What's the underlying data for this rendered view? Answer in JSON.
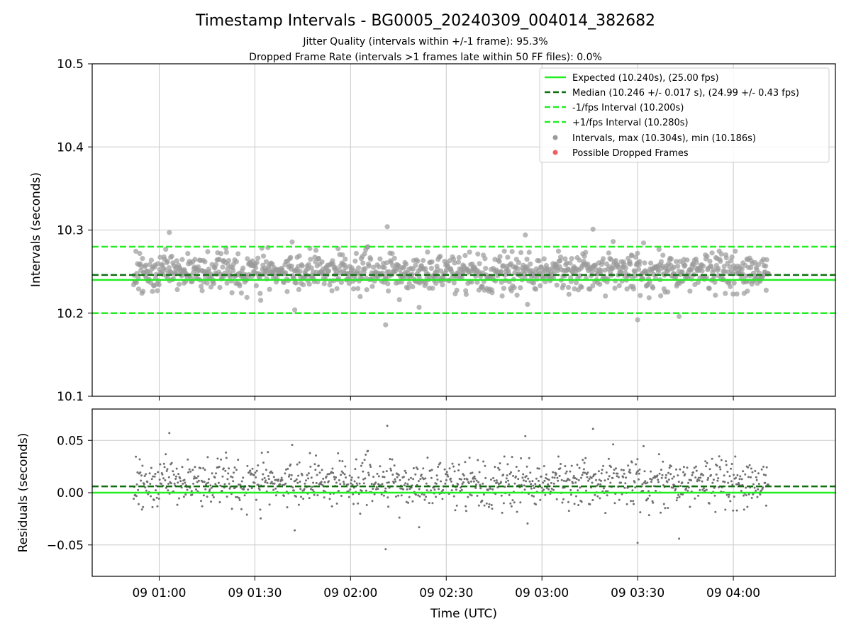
{
  "chart_data": [
    {
      "type": "scatter",
      "panel": "intervals",
      "title": "Timestamp Intervals - BG0005_20240309_004014_382682",
      "subtitle_lines": [
        "Jitter Quality (intervals within +/-1 frame): 95.3%",
        "Dropped Frame Rate (intervals >1 frames late within 50 FF files): 0.0%"
      ],
      "ylabel": "Intervals (seconds)",
      "ylim": [
        10.1,
        10.5
      ],
      "yticks": [
        "10.1",
        "10.2",
        "10.3",
        "10.4",
        "10.5"
      ],
      "grid": true,
      "legend_position": "top-right",
      "lines": [
        {
          "name": "Expected (10.240s), (25.00 fps)",
          "y": 10.24,
          "style": "solid",
          "color": "#22ee22"
        },
        {
          "name": "Median (10.246 +/- 0.017 s), (24.99 +/- 0.43 fps)",
          "y": 10.246,
          "style": "dashed",
          "color": "#107010"
        },
        {
          "name": "-1/fps Interval (10.200s)",
          "y": 10.2,
          "style": "dashed",
          "color": "#22ee22"
        },
        {
          "name": "+1/fps Interval (10.280s)",
          "y": 10.28,
          "style": "dashed",
          "color": "#22ee22"
        }
      ],
      "series": [
        {
          "name": "Intervals, max (10.304s), min (10.186s)",
          "color": "#9a9a9a",
          "count": 1150,
          "x_start_min": 52.0,
          "x_end_min": 251.0,
          "center": 10.25,
          "spread": 0.012,
          "max": 10.304,
          "min": 10.186,
          "outliers": [
            {
              "x": 131.5,
              "y": 10.304
            },
            {
              "x": 131.0,
              "y": 10.186
            },
            {
              "x": 210.0,
              "y": 10.192
            },
            {
              "x": 63.2,
              "y": 10.297
            },
            {
              "x": 174.8,
              "y": 10.294
            },
            {
              "x": 196.0,
              "y": 10.301
            },
            {
              "x": 223.0,
              "y": 10.196
            },
            {
              "x": 102.5,
              "y": 10.204
            },
            {
              "x": 141.5,
              "y": 10.207
            }
          ]
        },
        {
          "name": "Possible Dropped Frames",
          "color": "#f06060",
          "count": 0
        }
      ]
    },
    {
      "type": "scatter",
      "panel": "residuals",
      "ylabel": "Residuals (seconds)",
      "xlabel": "Time (UTC)",
      "ylim": [
        -0.08,
        0.08
      ],
      "yticks": [
        "−0.05",
        "0.00",
        "0.05"
      ],
      "ytick_values": [
        -0.05,
        0.0,
        0.05
      ],
      "xlim_min": [
        39.0,
        272.0
      ],
      "xticks": [
        "09 01:00",
        "09 01:30",
        "09 02:00",
        "09 02:30",
        "09 03:00",
        "09 03:30",
        "09 04:00"
      ],
      "xtick_values_min": [
        60,
        90,
        120,
        150,
        180,
        210,
        240
      ],
      "grid": true,
      "lines": [
        {
          "name": "zero",
          "y": 0.0,
          "style": "solid",
          "color": "#22ee22"
        },
        {
          "name": "median residual",
          "y": 0.006,
          "style": "dashed",
          "color": "#107010"
        }
      ],
      "series": [
        {
          "name": "Residuals",
          "color": "#707070",
          "derived_from": "intervals minus expected"
        }
      ]
    }
  ]
}
